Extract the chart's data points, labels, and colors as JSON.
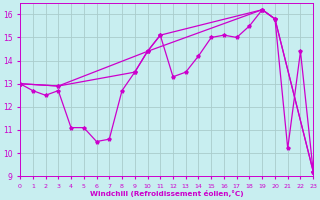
{
  "xlabel": "Windchill (Refroidissement éolien,°C)",
  "background_color": "#c8eef0",
  "grid_color": "#aacccc",
  "line_color": "#cc00cc",
  "xlim": [
    0,
    23
  ],
  "ylim": [
    9,
    16.5
  ],
  "yticks": [
    9,
    10,
    11,
    12,
    13,
    14,
    15,
    16
  ],
  "xticks": [
    0,
    1,
    2,
    3,
    4,
    5,
    6,
    7,
    8,
    9,
    10,
    11,
    12,
    13,
    14,
    15,
    16,
    17,
    18,
    19,
    20,
    21,
    22,
    23
  ],
  "curve1_x": [
    0,
    1,
    2,
    3,
    4,
    5,
    6,
    7,
    8,
    9,
    10,
    11,
    12,
    13,
    14,
    15,
    16,
    17,
    18,
    19,
    20,
    21,
    22,
    23
  ],
  "curve1_y": [
    13.0,
    12.7,
    12.5,
    12.7,
    11.1,
    11.1,
    10.5,
    10.6,
    12.7,
    13.5,
    14.4,
    15.1,
    13.3,
    13.5,
    14.2,
    15.0,
    15.1,
    15.0,
    15.5,
    16.2,
    15.8,
    10.2,
    14.4,
    9.2
  ],
  "curve2_x": [
    0,
    3,
    9,
    10,
    19,
    20,
    23
  ],
  "curve2_y": [
    13.0,
    12.9,
    13.5,
    14.4,
    16.2,
    15.8,
    9.2
  ],
  "curve3_x": [
    0,
    3,
    10,
    11,
    19,
    20,
    23
  ],
  "curve3_y": [
    13.0,
    12.9,
    14.4,
    15.1,
    16.2,
    15.8,
    9.2
  ]
}
